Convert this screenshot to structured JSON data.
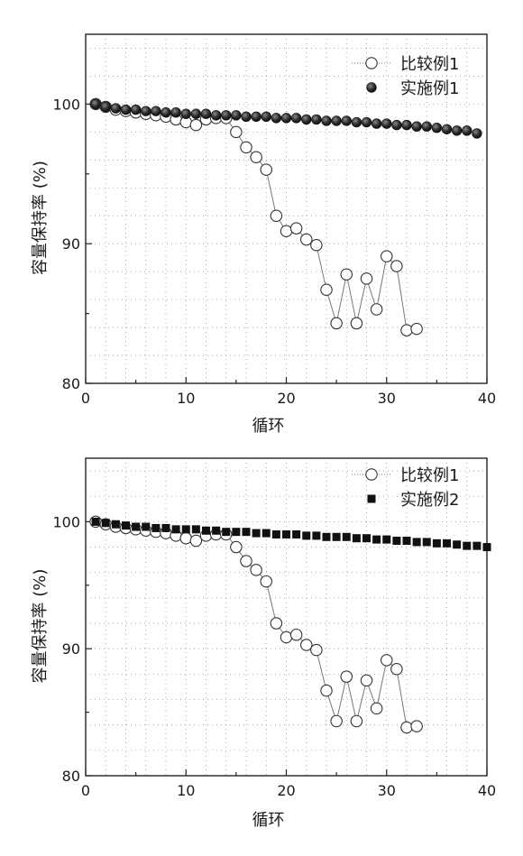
{
  "chart_data": [
    {
      "type": "scatter",
      "xlabel": "循环",
      "ylabel": "容量保持率 (%)",
      "xlim": [
        0,
        40
      ],
      "ylim": [
        80,
        105
      ],
      "xticks": [
        0,
        10,
        20,
        30,
        40
      ],
      "yticks": [
        80,
        90,
        100
      ],
      "grid": true,
      "legend_position": "top-right",
      "series": [
        {
          "name": "比较例1",
          "marker": "open-circle",
          "line": true,
          "x": [
            1,
            2,
            3,
            4,
            5,
            6,
            7,
            8,
            9,
            10,
            11,
            12,
            13,
            14,
            15,
            16,
            17,
            18,
            19,
            20,
            21,
            22,
            23,
            24,
            25,
            26,
            27,
            28,
            29,
            30,
            31,
            32,
            33
          ],
          "y": [
            100.0,
            99.8,
            99.6,
            99.5,
            99.4,
            99.3,
            99.2,
            99.1,
            98.9,
            98.7,
            98.5,
            98.9,
            99.0,
            99.0,
            98.0,
            96.9,
            96.2,
            95.3,
            92.0,
            90.9,
            91.1,
            90.3,
            89.9,
            86.7,
            84.3,
            87.8,
            84.3,
            87.5,
            85.3,
            89.1,
            88.4,
            83.8,
            83.9
          ]
        },
        {
          "name": "实施例1",
          "marker": "dark-circle",
          "line": false,
          "x": [
            1,
            2,
            3,
            4,
            5,
            6,
            7,
            8,
            9,
            10,
            11,
            12,
            13,
            14,
            15,
            16,
            17,
            18,
            19,
            20,
            21,
            22,
            23,
            24,
            25,
            26,
            27,
            28,
            29,
            30,
            31,
            32,
            33,
            34,
            35,
            36,
            37,
            38,
            39
          ],
          "y": [
            100.0,
            99.8,
            99.7,
            99.6,
            99.6,
            99.5,
            99.5,
            99.4,
            99.4,
            99.3,
            99.3,
            99.3,
            99.2,
            99.2,
            99.2,
            99.1,
            99.1,
            99.1,
            99.0,
            99.0,
            99.0,
            98.9,
            98.9,
            98.8,
            98.8,
            98.8,
            98.7,
            98.7,
            98.6,
            98.6,
            98.5,
            98.5,
            98.4,
            98.4,
            98.3,
            98.2,
            98.1,
            98.1,
            97.9
          ]
        }
      ]
    },
    {
      "type": "scatter",
      "xlabel": "循环",
      "ylabel": "容量保持率 (%)",
      "xlim": [
        0,
        40
      ],
      "ylim": [
        80,
        105
      ],
      "xticks": [
        0,
        10,
        20,
        30,
        40
      ],
      "yticks": [
        80,
        90,
        100
      ],
      "grid": true,
      "legend_position": "top-right",
      "series": [
        {
          "name": "比较例1",
          "marker": "open-circle",
          "line": true,
          "x": [
            1,
            2,
            3,
            4,
            5,
            6,
            7,
            8,
            9,
            10,
            11,
            12,
            13,
            14,
            15,
            16,
            17,
            18,
            19,
            20,
            21,
            22,
            23,
            24,
            25,
            26,
            27,
            28,
            29,
            30,
            31,
            32,
            33
          ],
          "y": [
            100.0,
            99.8,
            99.6,
            99.5,
            99.4,
            99.3,
            99.2,
            99.1,
            98.9,
            98.7,
            98.5,
            98.9,
            99.0,
            99.0,
            98.0,
            96.9,
            96.2,
            95.3,
            92.0,
            90.9,
            91.1,
            90.3,
            89.9,
            86.7,
            84.3,
            87.8,
            84.3,
            87.5,
            85.3,
            89.1,
            88.4,
            83.8,
            83.9
          ]
        },
        {
          "name": "实施例2",
          "marker": "filled-square",
          "line": false,
          "x": [
            1,
            2,
            3,
            4,
            5,
            6,
            7,
            8,
            9,
            10,
            11,
            12,
            13,
            14,
            15,
            16,
            17,
            18,
            19,
            20,
            21,
            22,
            23,
            24,
            25,
            26,
            27,
            28,
            29,
            30,
            31,
            32,
            33,
            34,
            35,
            36,
            37,
            38,
            39,
            40
          ],
          "y": [
            100.0,
            99.9,
            99.8,
            99.7,
            99.6,
            99.6,
            99.5,
            99.5,
            99.4,
            99.4,
            99.4,
            99.3,
            99.3,
            99.2,
            99.2,
            99.2,
            99.1,
            99.1,
            99.0,
            99.0,
            99.0,
            98.9,
            98.9,
            98.8,
            98.8,
            98.8,
            98.7,
            98.7,
            98.6,
            98.6,
            98.5,
            98.5,
            98.4,
            98.4,
            98.3,
            98.3,
            98.2,
            98.1,
            98.1,
            98.0
          ]
        }
      ]
    }
  ]
}
